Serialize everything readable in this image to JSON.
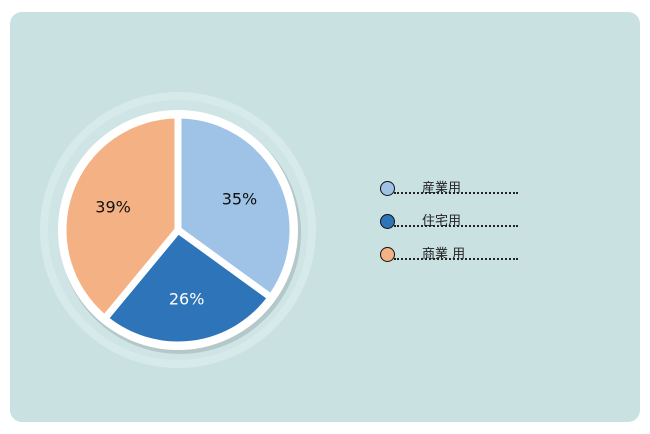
{
  "chart_data": {
    "type": "pie",
    "start": "top",
    "direction": "clockwise",
    "slices": [
      {
        "name": "産業用",
        "value": 35,
        "label": "35%",
        "color": "#9fc3e6",
        "label_color": "#111111"
      },
      {
        "name": "住宅用",
        "value": 26,
        "label": "26%",
        "color": "#2e74b8",
        "label_color": "#ffffff"
      },
      {
        "name": "商業 用",
        "value": 39,
        "label": "39%",
        "color": "#f4b183",
        "label_color": "#111111"
      }
    ],
    "legend_placement": "right"
  },
  "colors": {
    "background": "#c9e1e1",
    "separator": "#ffffff"
  }
}
